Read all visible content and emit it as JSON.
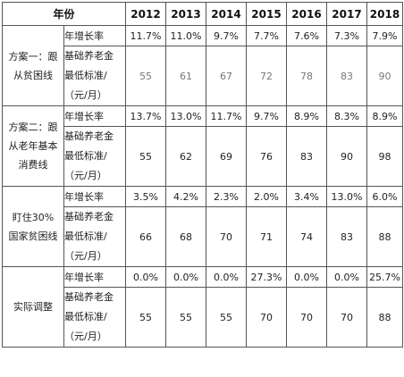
{
  "header": {
    "corner": "年份",
    "years": [
      "2012",
      "2013",
      "2014",
      "2015",
      "2016",
      "2017",
      "2018"
    ]
  },
  "row_labels": {
    "growth": "年增长率",
    "base_lines": [
      "基础养老金",
      "最低标准/",
      "（元/月）"
    ]
  },
  "plans": [
    {
      "name_lines": [
        "方案一：跟",
        "从贫困线"
      ],
      "growth": [
        "11.7%",
        "11.0%",
        "9.7%",
        "7.7%",
        "7.6%",
        "7.3%",
        "7.9%"
      ],
      "base": [
        "55",
        "61",
        "67",
        "72",
        "78",
        "83",
        "90"
      ],
      "base_style": "grey"
    },
    {
      "name_lines": [
        "方案二：跟",
        "从老年基本",
        "消费线"
      ],
      "growth": [
        "13.7%",
        "13.0%",
        "11.7%",
        "9.7%",
        "8.9%",
        "8.3%",
        "8.9%"
      ],
      "base": [
        "55",
        "62",
        "69",
        "76",
        "83",
        "90",
        "98"
      ],
      "base_style": "normal"
    },
    {
      "name_lines": [
        "盯住30%",
        "国家贫困线"
      ],
      "growth": [
        "3.5%",
        "4.2%",
        "2.3%",
        "2.0%",
        "3.4%",
        "13.0%",
        "6.0%"
      ],
      "base": [
        "66",
        "68",
        "70",
        "71",
        "74",
        "83",
        "88"
      ],
      "base_style": "normal"
    },
    {
      "name_lines": [
        "实际调整"
      ],
      "growth": [
        "0.0%",
        "0.0%",
        "0.0%",
        "27.3%",
        "0.0%",
        "0.0%",
        "25.7%"
      ],
      "base": [
        "55",
        "55",
        "55",
        "70",
        "70",
        "70",
        "88"
      ],
      "base_style": "normal"
    }
  ]
}
